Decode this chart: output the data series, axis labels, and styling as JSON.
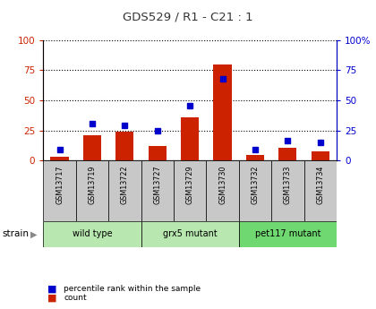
{
  "title": "GDS529 / R1 - C21 : 1",
  "samples": [
    "GSM13717",
    "GSM13719",
    "GSM13722",
    "GSM13727",
    "GSM13729",
    "GSM13730",
    "GSM13732",
    "GSM13733",
    "GSM13734"
  ],
  "count": [
    3,
    21,
    24,
    12,
    36,
    80,
    5,
    11,
    8
  ],
  "percentile": [
    9,
    31,
    29,
    25,
    46,
    68,
    9,
    17,
    15
  ],
  "groups": [
    {
      "label": "wild type",
      "start": 0,
      "end": 3
    },
    {
      "label": "grx5 mutant",
      "start": 3,
      "end": 6
    },
    {
      "label": "pet117 mutant",
      "start": 6,
      "end": 9
    }
  ],
  "group_colors": [
    "#b8e8b0",
    "#b8e8b0",
    "#70d870"
  ],
  "ylim": [
    0,
    100
  ],
  "yticks": [
    0,
    25,
    50,
    75,
    100
  ],
  "bar_color": "#cc2200",
  "dot_color": "#0000cc",
  "tick_bg_color": "#c8c8c8",
  "left_axis_color": "#cc2200",
  "right_axis_color": "#0000cc",
  "title_color": "#333333",
  "legend_count": "count",
  "legend_percentile": "percentile rank within the sample"
}
